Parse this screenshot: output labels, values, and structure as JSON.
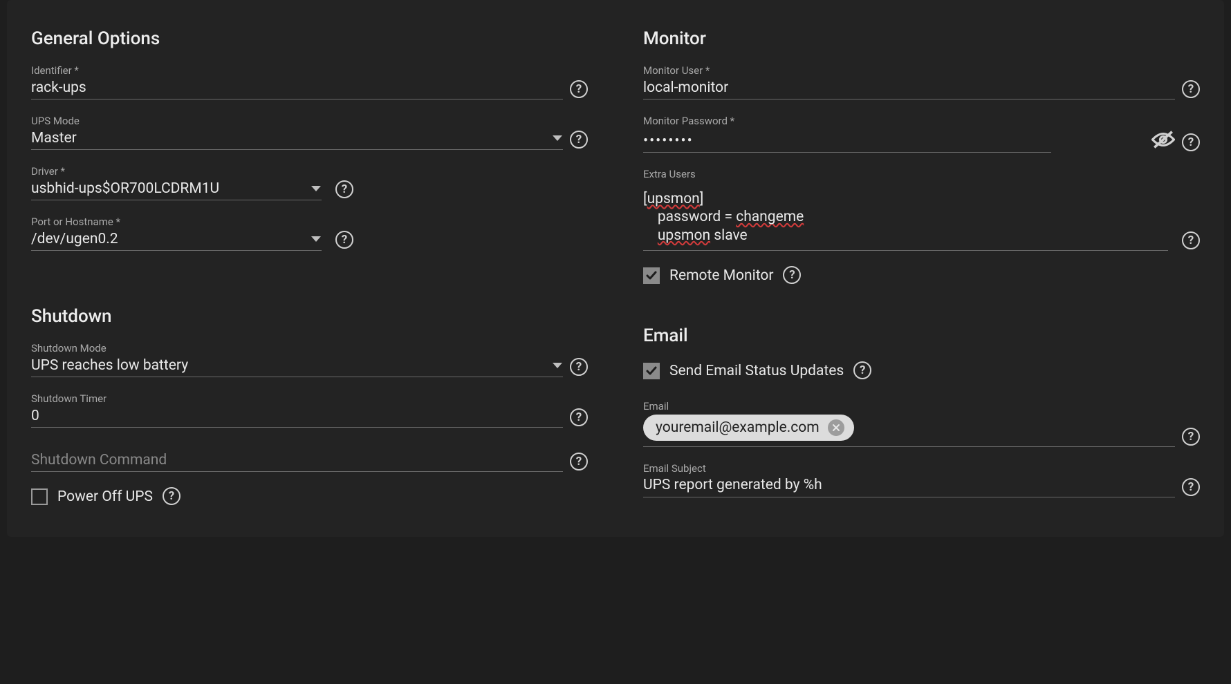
{
  "colors": {
    "bg": "#1e1e1e",
    "panel": "#232323",
    "text": "#e8e8e8",
    "muted": "#a9a9a9",
    "line": "#6a6a6a",
    "chip_bg": "#dcdcdc",
    "chip_text": "#222222",
    "chip_remove_bg": "#9c9c9c",
    "spell_error": "#d13b3b",
    "checkbox_checked_bg": "#8a8a8a",
    "icon": "#d0d0d0"
  },
  "general": {
    "title": "General Options",
    "identifier": {
      "label": "Identifier *",
      "value": "rack-ups"
    },
    "ups_mode": {
      "label": "UPS Mode",
      "value": "Master"
    },
    "driver": {
      "label": "Driver *",
      "value": "usbhid-ups$OR700LCDRM1U"
    },
    "port": {
      "label": "Port or Hostname *",
      "value": "/dev/ugen0.2"
    }
  },
  "monitor": {
    "title": "Monitor",
    "user": {
      "label": "Monitor User *",
      "value": "local-monitor"
    },
    "password": {
      "label": "Monitor Password *",
      "value": "••••••••"
    },
    "extra_users": {
      "label": "Extra Users",
      "lines": [
        {
          "text": "[",
          "spell": false
        },
        {
          "text": "upsmon",
          "spell": true
        },
        {
          "text": "]",
          "spell": false
        },
        {
          "text": "\n    password = ",
          "spell": false
        },
        {
          "text": "changeme",
          "spell": true
        },
        {
          "text": "\n    ",
          "spell": false
        },
        {
          "text": "upsmon",
          "spell": true
        },
        {
          "text": " slave",
          "spell": false
        }
      ]
    },
    "remote": {
      "label": "Remote Monitor",
      "checked": true
    }
  },
  "shutdown": {
    "title": "Shutdown",
    "mode": {
      "label": "Shutdown Mode",
      "value": "UPS reaches low battery"
    },
    "timer": {
      "label": "Shutdown Timer",
      "value": "0"
    },
    "command": {
      "label": "",
      "placeholder": "Shutdown Command"
    },
    "poweroff": {
      "label": "Power Off UPS",
      "checked": false
    }
  },
  "email": {
    "title": "Email",
    "send_updates": {
      "label": "Send Email Status Updates",
      "checked": true
    },
    "address": {
      "label": "Email",
      "chip": "youremail@example.com"
    },
    "subject": {
      "label": "Email Subject",
      "value": "UPS report generated by %h"
    }
  }
}
